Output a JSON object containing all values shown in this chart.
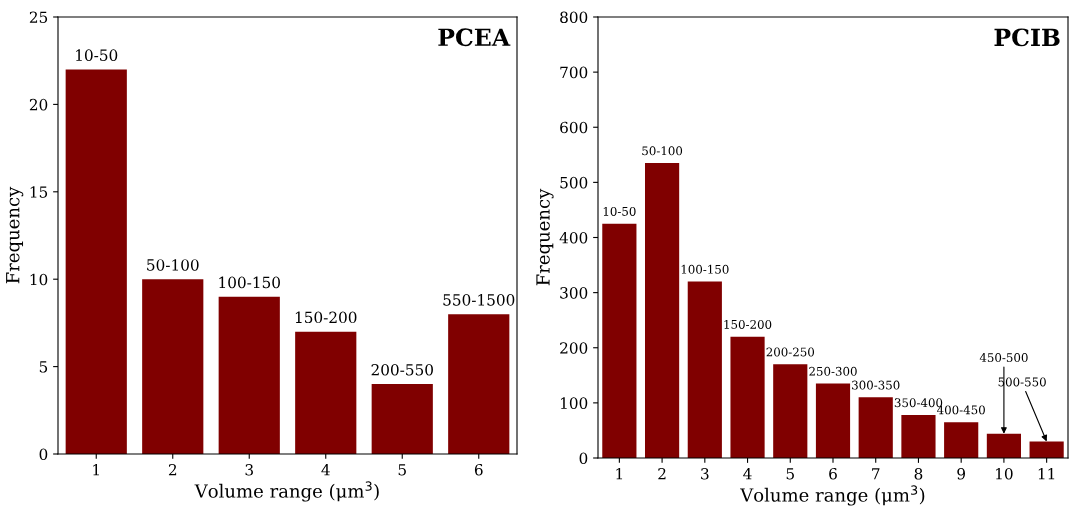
{
  "chart_data": [
    {
      "type": "bar",
      "title": "PCEA",
      "xlabel": "Volume range (μm$^{3}$)",
      "ylabel": "Frequency",
      "categories": [
        "1",
        "2",
        "3",
        "4",
        "5",
        "6"
      ],
      "values": [
        22,
        10,
        9,
        7,
        4,
        8
      ],
      "color": "#800000",
      "ylim": [
        0,
        25
      ],
      "yticks": [
        0,
        5,
        10,
        15,
        20,
        25
      ],
      "grid": false,
      "annotations": [
        {
          "text": "10-50",
          "x": "1",
          "y": 22
        },
        {
          "text": "50-100",
          "x": "2",
          "y": 10
        },
        {
          "text": "100-150",
          "x": "3",
          "y": 9
        },
        {
          "text": "150-200",
          "x": "4",
          "y": 7
        },
        {
          "text": "200-550",
          "x": "5",
          "y": 4
        },
        {
          "text": "550-1500",
          "x": "6",
          "y": 8
        }
      ]
    },
    {
      "type": "bar",
      "title": "PCIB",
      "xlabel": "Volume range (μm$^{3}$)",
      "ylabel": "Frequency",
      "categories": [
        "1",
        "2",
        "3",
        "4",
        "5",
        "6",
        "7",
        "8",
        "9",
        "10",
        "11"
      ],
      "values": [
        425,
        535,
        320,
        220,
        170,
        135,
        110,
        78,
        65,
        44,
        30
      ],
      "color": "#800000",
      "ylim": [
        0,
        800
      ],
      "yticks": [
        0,
        100,
        200,
        300,
        400,
        500,
        600,
        700,
        800
      ],
      "grid": false,
      "annotations": [
        {
          "text": "10-50",
          "x": "1",
          "y": 425
        },
        {
          "text": "50-100",
          "x": "2",
          "y": 535
        },
        {
          "text": "100-150",
          "x": "3",
          "y": 320
        },
        {
          "text": "150-200",
          "x": "4",
          "y": 220
        },
        {
          "text": "200-250",
          "x": "5",
          "y": 170
        },
        {
          "text": "250-300",
          "x": "6",
          "y": 135
        },
        {
          "text": "300-350",
          "x": "7",
          "y": 110
        },
        {
          "text": "350-400",
          "x": "8",
          "y": 78
        },
        {
          "text": "400-450",
          "x": "9",
          "y": 65
        },
        {
          "text": "450-500",
          "x": "10",
          "y": 44
        },
        {
          "text": "500-550",
          "x": "11",
          "y": 30
        }
      ]
    }
  ]
}
